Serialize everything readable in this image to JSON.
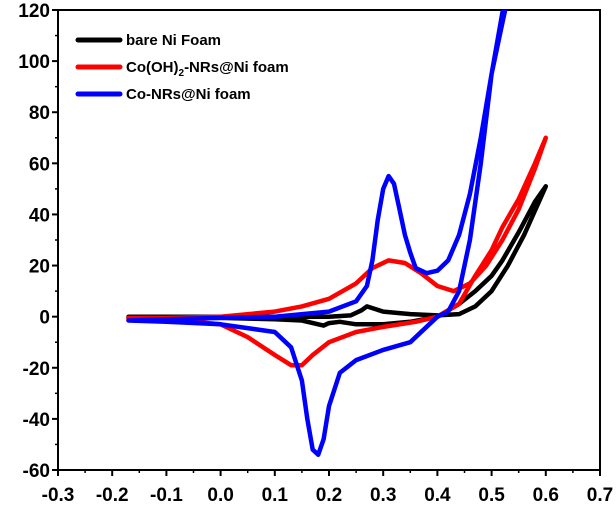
{
  "chart_data": {
    "type": "line",
    "title": "",
    "xlabel": "",
    "ylabel": "",
    "xlim": [
      -0.3,
      0.7
    ],
    "ylim": [
      -60,
      120
    ],
    "x_ticks": [
      "-0.3",
      "-0.2",
      "-0.1",
      "0.0",
      "0.1",
      "0.2",
      "0.3",
      "0.4",
      "0.5",
      "0.6",
      "0.7"
    ],
    "y_ticks": [
      "-60",
      "-40",
      "-20",
      "0",
      "20",
      "40",
      "60",
      "80",
      "100",
      "120"
    ],
    "grid": false,
    "legend_position": "top-left",
    "legend": [
      {
        "label": "bare Ni Foam",
        "main": "bare Ni Foam",
        "sub": "",
        "tail": ""
      },
      {
        "label": "Co(OH)2-NRs@Ni foam",
        "main": "Co(OH)",
        "sub": "2",
        "tail": "-NRs@Ni foam"
      },
      {
        "label": "Co-NRs@Ni foam",
        "main": "Co-NRs@Ni foam",
        "sub": "",
        "tail": ""
      }
    ],
    "series": [
      {
        "name": "bare Ni Foam",
        "color": "#000000",
        "points": [
          [
            -0.17,
            0
          ],
          [
            -0.1,
            0
          ],
          [
            0,
            0
          ],
          [
            0.1,
            0
          ],
          [
            0.2,
            0
          ],
          [
            0.24,
            0.5
          ],
          [
            0.26,
            2.5
          ],
          [
            0.27,
            4
          ],
          [
            0.285,
            3
          ],
          [
            0.3,
            2
          ],
          [
            0.35,
            1
          ],
          [
            0.4,
            0.5
          ],
          [
            0.44,
            1
          ],
          [
            0.47,
            4
          ],
          [
            0.5,
            10
          ],
          [
            0.53,
            20
          ],
          [
            0.56,
            32
          ],
          [
            0.6,
            51
          ],
          [
            0.58,
            45
          ],
          [
            0.55,
            33
          ],
          [
            0.52,
            22
          ],
          [
            0.5,
            16
          ],
          [
            0.47,
            10
          ],
          [
            0.44,
            5
          ],
          [
            0.4,
            0
          ],
          [
            0.35,
            -2
          ],
          [
            0.3,
            -3
          ],
          [
            0.25,
            -3
          ],
          [
            0.22,
            -2
          ],
          [
            0.2,
            -2.5
          ],
          [
            0.19,
            -3.5
          ],
          [
            0.18,
            -3
          ],
          [
            0.15,
            -1.5
          ],
          [
            0.1,
            -1
          ],
          [
            0,
            -0.5
          ],
          [
            -0.1,
            -0.5
          ],
          [
            -0.17,
            -0.5
          ]
        ]
      },
      {
        "name": "Co(OH)2-NRs@Ni foam",
        "color": "#ff0000",
        "points": [
          [
            -0.17,
            -0.5
          ],
          [
            -0.1,
            -0.5
          ],
          [
            0,
            0
          ],
          [
            0.1,
            2
          ],
          [
            0.15,
            4
          ],
          [
            0.2,
            7
          ],
          [
            0.25,
            13
          ],
          [
            0.28,
            19
          ],
          [
            0.31,
            22
          ],
          [
            0.34,
            21
          ],
          [
            0.37,
            17
          ],
          [
            0.4,
            12
          ],
          [
            0.43,
            10
          ],
          [
            0.46,
            13
          ],
          [
            0.49,
            20
          ],
          [
            0.52,
            30
          ],
          [
            0.55,
            42
          ],
          [
            0.58,
            58
          ],
          [
            0.6,
            70
          ],
          [
            0.58,
            60
          ],
          [
            0.55,
            46
          ],
          [
            0.52,
            35
          ],
          [
            0.5,
            26
          ],
          [
            0.47,
            16
          ],
          [
            0.44,
            5
          ],
          [
            0.4,
            0
          ],
          [
            0.36,
            -2
          ],
          [
            0.3,
            -4
          ],
          [
            0.25,
            -6
          ],
          [
            0.2,
            -10
          ],
          [
            0.17,
            -15
          ],
          [
            0.15,
            -19
          ],
          [
            0.13,
            -19
          ],
          [
            0.1,
            -15
          ],
          [
            0.05,
            -8
          ],
          [
            0,
            -3
          ],
          [
            -0.05,
            -2
          ],
          [
            -0.1,
            -1
          ],
          [
            -0.17,
            -1
          ]
        ]
      },
      {
        "name": "Co-NRs@Ni foam",
        "color": "#0000ff",
        "points": [
          [
            -0.17,
            -1.5
          ],
          [
            -0.1,
            -1
          ],
          [
            0,
            -0.5
          ],
          [
            0.1,
            0
          ],
          [
            0.2,
            2
          ],
          [
            0.25,
            6
          ],
          [
            0.27,
            12
          ],
          [
            0.28,
            22
          ],
          [
            0.29,
            38
          ],
          [
            0.3,
            50
          ],
          [
            0.31,
            55
          ],
          [
            0.32,
            52
          ],
          [
            0.33,
            42
          ],
          [
            0.34,
            32
          ],
          [
            0.35,
            25
          ],
          [
            0.36,
            19
          ],
          [
            0.38,
            17
          ],
          [
            0.4,
            18
          ],
          [
            0.42,
            22
          ],
          [
            0.44,
            32
          ],
          [
            0.46,
            48
          ],
          [
            0.48,
            70
          ],
          [
            0.5,
            95
          ],
          [
            0.52,
            115
          ],
          [
            0.53,
            125
          ],
          [
            0.52,
            119
          ],
          [
            0.5,
            95
          ],
          [
            0.48,
            60
          ],
          [
            0.46,
            30
          ],
          [
            0.44,
            10
          ],
          [
            0.42,
            2
          ],
          [
            0.4,
            0
          ],
          [
            0.35,
            -10
          ],
          [
            0.3,
            -13
          ],
          [
            0.25,
            -17
          ],
          [
            0.22,
            -22
          ],
          [
            0.2,
            -35
          ],
          [
            0.19,
            -48
          ],
          [
            0.18,
            -54
          ],
          [
            0.17,
            -52
          ],
          [
            0.16,
            -40
          ],
          [
            0.15,
            -25
          ],
          [
            0.13,
            -12
          ],
          [
            0.1,
            -6
          ],
          [
            0,
            -3
          ],
          [
            -0.1,
            -2
          ],
          [
            -0.17,
            -1.5
          ]
        ]
      }
    ]
  }
}
